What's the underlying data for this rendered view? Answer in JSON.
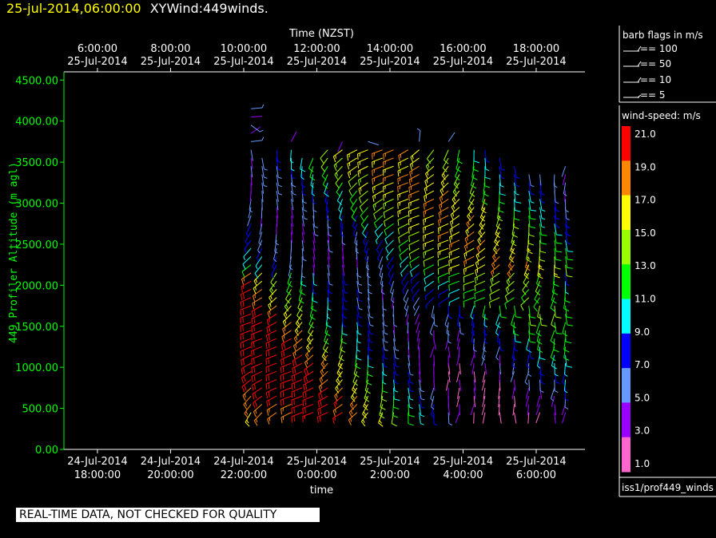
{
  "header": {
    "date": "25-jul-2014,06:00:00",
    "title": "XYWind:449winds."
  },
  "colors": {
    "background": "#000000",
    "axis": "#ffffff",
    "y_axis": "#00ff00",
    "header_date": "#ffff00"
  },
  "chart_data": {
    "type": "wind-barb-profile",
    "top_axis_label": "Time (NZST)",
    "top_ticks": [
      {
        "time": "6:00:00",
        "date": "25-Jul-2014"
      },
      {
        "time": "8:00:00",
        "date": "25-Jul-2014"
      },
      {
        "time": "10:00:00",
        "date": "25-Jul-2014"
      },
      {
        "time": "12:00:00",
        "date": "25-Jul-2014"
      },
      {
        "time": "14:00:00",
        "date": "25-Jul-2014"
      },
      {
        "time": "16:00:00",
        "date": "25-Jul-2014"
      },
      {
        "time": "18:00:00",
        "date": "25-Jul-2014"
      }
    ],
    "bottom_axis_label": "time",
    "bottom_ticks": [
      {
        "date": "24-Jul-2014",
        "time": "18:00:00"
      },
      {
        "date": "24-Jul-2014",
        "time": "20:00:00"
      },
      {
        "date": "24-Jul-2014",
        "time": "22:00:00"
      },
      {
        "date": "25-Jul-2014",
        "time": "0:00:00"
      },
      {
        "date": "25-Jul-2014",
        "time": "2:00:00"
      },
      {
        "date": "25-Jul-2014",
        "time": "4:00:00"
      },
      {
        "date": "25-Jul-2014",
        "time": "6:00:00"
      }
    ],
    "x_range_utc": [
      "24-Jul-2014 17:05",
      "25-Jul-2014 7:20"
    ],
    "ylabel": "449 Profiler Altitude (m agl)",
    "y_ticks": [
      "0.00",
      "500.00",
      "1000.00",
      "1500.00",
      "2000.00",
      "2500.00",
      "3000.00",
      "3500.00",
      "4000.00",
      "4500.00"
    ],
    "ylim": [
      0,
      4600
    ],
    "grid": false,
    "barb_legend": {
      "title": "barb flags in m/s",
      "entries": [
        "== 100",
        "== 50",
        "== 10",
        "== 5"
      ]
    },
    "colorbar": {
      "title": "wind-speed: m/s",
      "labels": [
        "21.0",
        "19.0",
        "17.0",
        "15.0",
        "13.0",
        "11.0",
        "9.0",
        "7.0",
        "5.0",
        "3.0",
        "1.0"
      ],
      "colors": [
        "#ff0000",
        "#ff8800",
        "#ffff00",
        "#99ff00",
        "#00ff00",
        "#00ffff",
        "#0000ff",
        "#6699ff",
        "#9900ff",
        "#ff66cc"
      ],
      "range": [
        0,
        22
      ]
    },
    "source_label": "iss1/prof449_winds",
    "profiles": {
      "times_utc_hours": [
        22.2,
        22.5,
        22.9,
        23.3,
        23.6,
        23.9,
        24.3,
        24.7,
        25.1,
        25.4,
        25.8,
        26.1,
        26.5,
        26.8,
        27.2,
        27.6,
        27.9,
        28.3,
        28.6,
        29.0,
        29.4,
        29.8,
        30.1,
        30.5,
        30.8
      ],
      "altitude_min": 450,
      "altitude_step": 100,
      "levels": 38,
      "top_altitudes": [
        4150,
        3600,
        3700,
        3750,
        3600,
        3600,
        3650,
        3800,
        3700,
        3750,
        3700,
        3700,
        3700,
        3750,
        3700,
        3750,
        3700,
        3700,
        3650,
        3550,
        3500,
        3400,
        3400,
        3350,
        3500
      ]
    }
  },
  "disclaimer": "REAL-TIME DATA, NOT CHECKED FOR QUALITY"
}
